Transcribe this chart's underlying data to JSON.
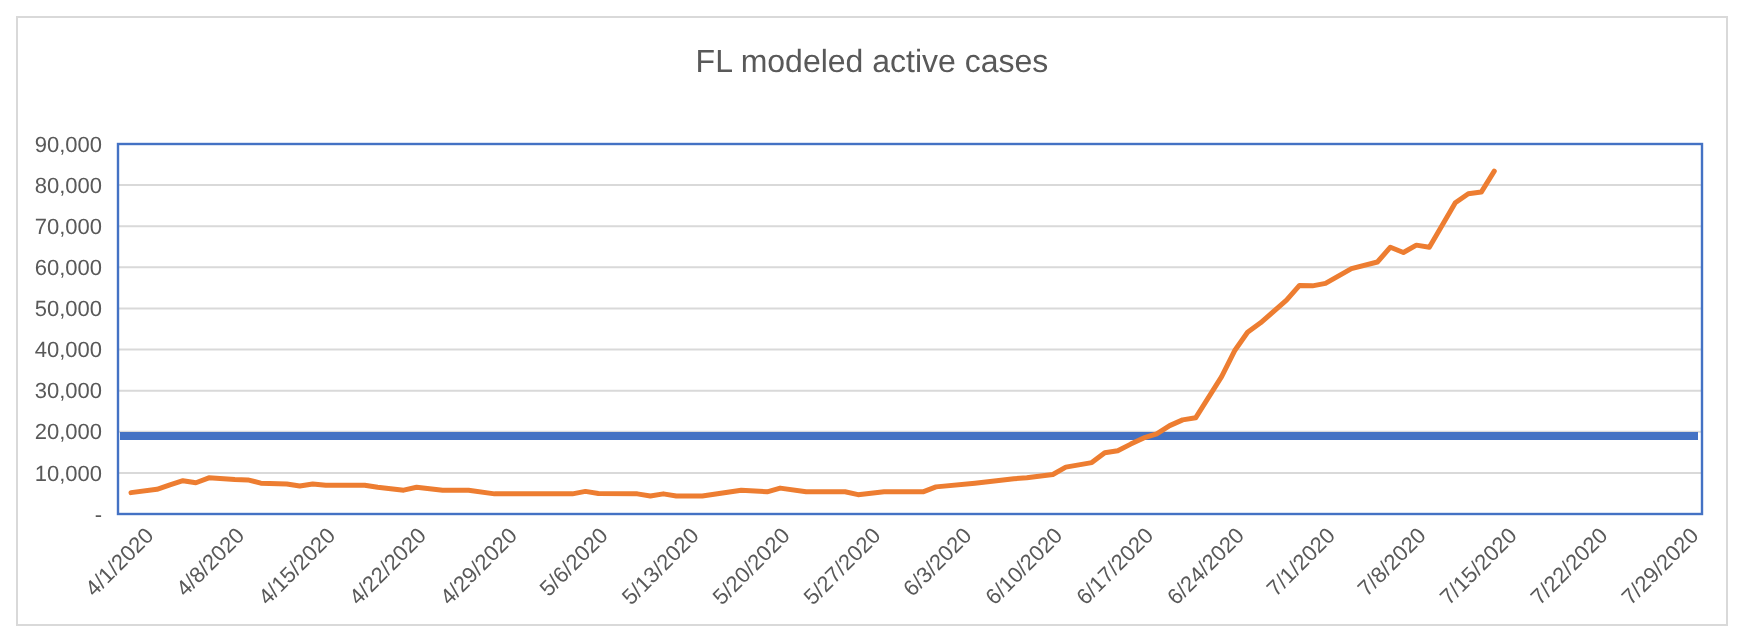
{
  "chart_data": {
    "type": "line",
    "title": "FL modeled active cases",
    "x": [
      "2020-03-31",
      "2020-04-02",
      "2020-04-03",
      "2020-04-04",
      "2020-04-05",
      "2020-04-06",
      "2020-04-08",
      "2020-04-09",
      "2020-04-10",
      "2020-04-12",
      "2020-04-13",
      "2020-04-14",
      "2020-04-15",
      "2020-04-18",
      "2020-04-19",
      "2020-04-21",
      "2020-04-22",
      "2020-04-24",
      "2020-04-26",
      "2020-04-28",
      "2020-05-02",
      "2020-05-04",
      "2020-05-05",
      "2020-05-06",
      "2020-05-09",
      "2020-05-10",
      "2020-05-11",
      "2020-05-12",
      "2020-05-14",
      "2020-05-17",
      "2020-05-19",
      "2020-05-20",
      "2020-05-22",
      "2020-05-25",
      "2020-05-26",
      "2020-05-28",
      "2020-05-31",
      "2020-06-01",
      "2020-06-04",
      "2020-06-07",
      "2020-06-08",
      "2020-06-10",
      "2020-06-11",
      "2020-06-13",
      "2020-06-14",
      "2020-06-15",
      "2020-06-16",
      "2020-06-17",
      "2020-06-18",
      "2020-06-19",
      "2020-06-20",
      "2020-06-21",
      "2020-06-23",
      "2020-06-24",
      "2020-06-25",
      "2020-06-26",
      "2020-06-28",
      "2020-06-29",
      "2020-06-30",
      "2020-07-01",
      "2020-07-03",
      "2020-07-05",
      "2020-07-06",
      "2020-07-07",
      "2020-07-08",
      "2020-07-09",
      "2020-07-11",
      "2020-07-12",
      "2020-07-13",
      "2020-07-14"
    ],
    "series": [
      {
        "color": "#ed7d31",
        "values": [
          5200,
          6000,
          7100,
          8100,
          7600,
          8800,
          8400,
          8300,
          7500,
          7300,
          6800,
          7300,
          7000,
          7000,
          6500,
          5800,
          6500,
          5800,
          5800,
          4900,
          4900,
          4900,
          5500,
          5000,
          4900,
          4400,
          4900,
          4400,
          4400,
          5800,
          5400,
          6300,
          5400,
          5400,
          4700,
          5400,
          5400,
          6600,
          7500,
          8600,
          8800,
          9600,
          11400,
          12500,
          14900,
          15400,
          17000,
          18500,
          19500,
          21500,
          22900,
          23400,
          33400,
          39700,
          44200,
          46500,
          52000,
          55600,
          55500,
          56100,
          59700,
          61300,
          64900,
          63600,
          65400,
          64900,
          75700,
          77900,
          78300,
          83400
        ]
      }
    ],
    "ref_lines": [
      {
        "axis": "y",
        "value": 19000,
        "color": "#4472c4"
      }
    ],
    "xlim": [
      "2020-03-30",
      "2020-07-30"
    ],
    "xticks": [
      {
        "value": "2020-04-01",
        "label": "4/1/2020"
      },
      {
        "value": "2020-04-08",
        "label": "4/8/2020"
      },
      {
        "value": "2020-04-15",
        "label": "4/15/2020"
      },
      {
        "value": "2020-04-22",
        "label": "4/22/2020"
      },
      {
        "value": "2020-04-29",
        "label": "4/29/2020"
      },
      {
        "value": "2020-05-06",
        "label": "5/6/2020"
      },
      {
        "value": "2020-05-13",
        "label": "5/13/2020"
      },
      {
        "value": "2020-05-20",
        "label": "5/20/2020"
      },
      {
        "value": "2020-05-27",
        "label": "5/27/2020"
      },
      {
        "value": "2020-06-03",
        "label": "6/3/2020"
      },
      {
        "value": "2020-06-10",
        "label": "6/10/2020"
      },
      {
        "value": "2020-06-17",
        "label": "6/17/2020"
      },
      {
        "value": "2020-06-24",
        "label": "6/24/2020"
      },
      {
        "value": "2020-07-01",
        "label": "7/1/2020"
      },
      {
        "value": "2020-07-08",
        "label": "7/8/2020"
      },
      {
        "value": "2020-07-15",
        "label": "7/15/2020"
      },
      {
        "value": "2020-07-22",
        "label": "7/22/2020"
      },
      {
        "value": "2020-07-29",
        "label": "7/29/2020"
      }
    ],
    "ylim": [
      0,
      90000
    ],
    "yticks": [
      {
        "value": 0,
        "label": "-"
      },
      {
        "value": 10000,
        "label": "10,000"
      },
      {
        "value": 20000,
        "label": "20,000"
      },
      {
        "value": 30000,
        "label": "30,000"
      },
      {
        "value": 40000,
        "label": "40,000"
      },
      {
        "value": 50000,
        "label": "50,000"
      },
      {
        "value": 60000,
        "label": "60,000"
      },
      {
        "value": 70000,
        "label": "70,000"
      },
      {
        "value": 80000,
        "label": "80,000"
      },
      {
        "value": 90000,
        "label": "90,000"
      }
    ],
    "grid": "y",
    "marker": "none",
    "line_style": "solid"
  }
}
